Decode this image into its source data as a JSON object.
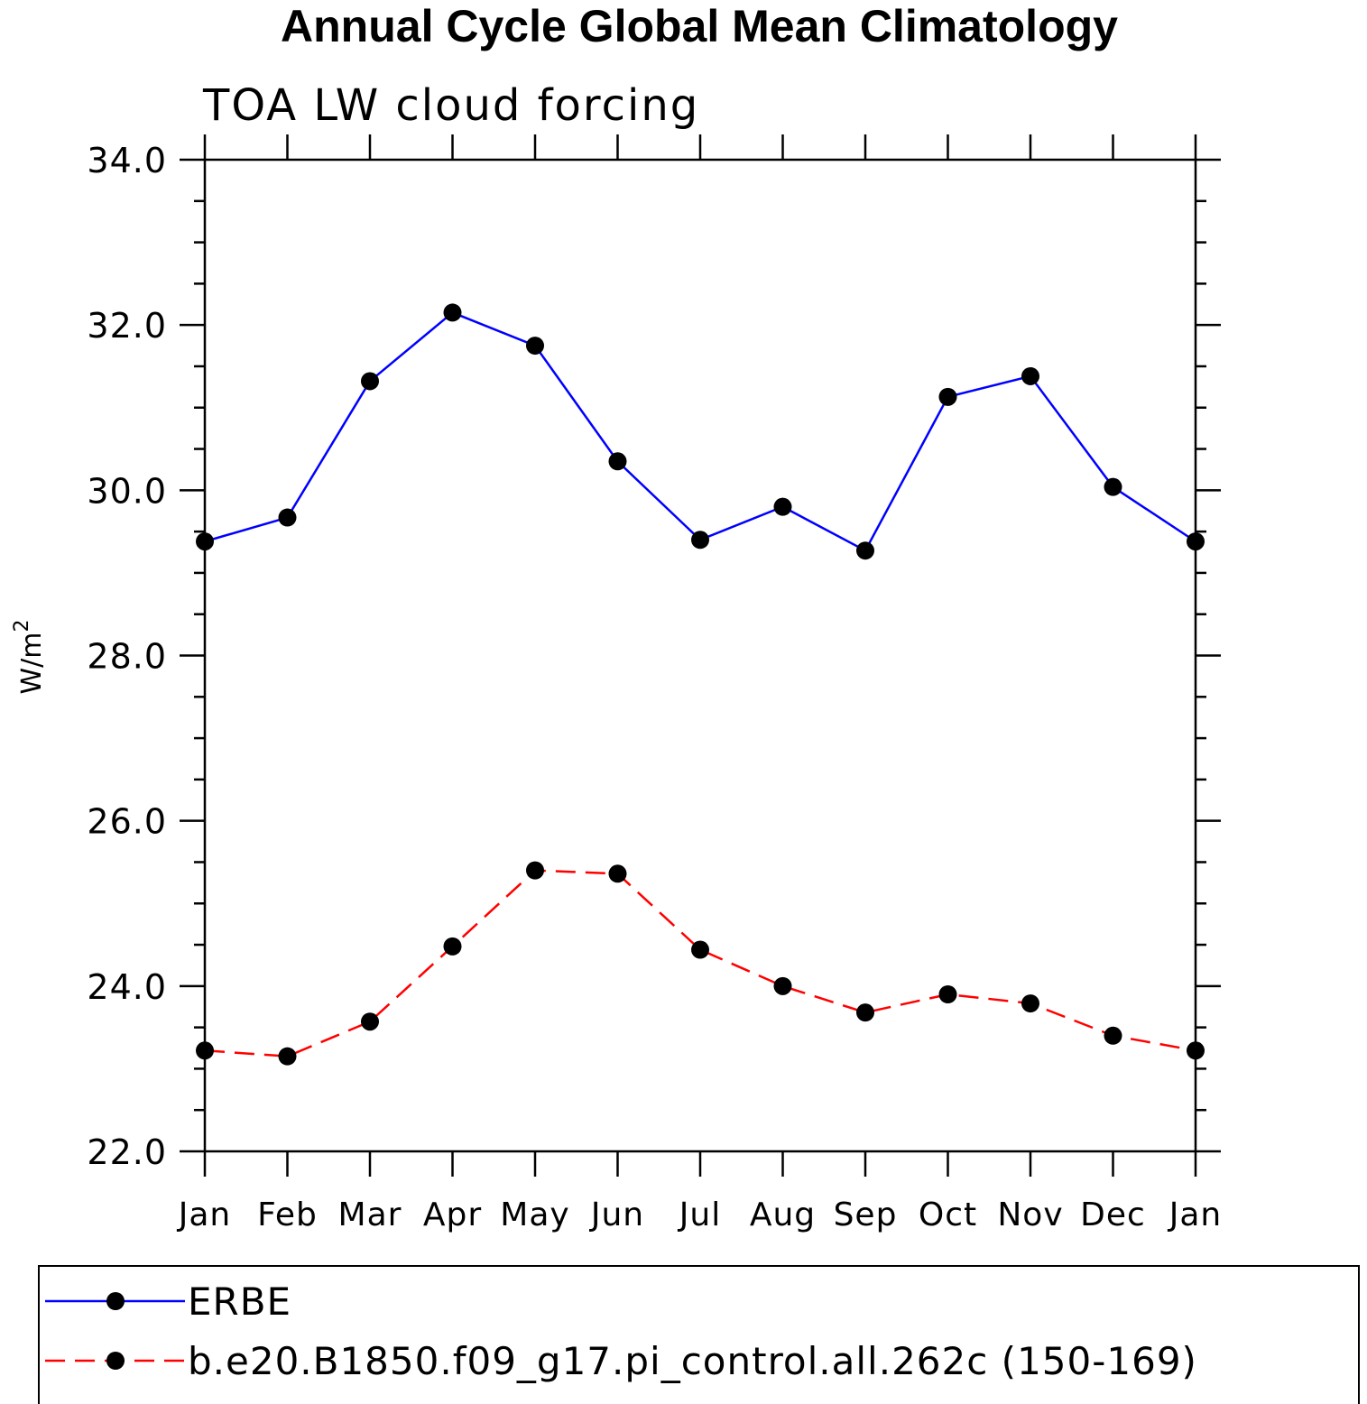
{
  "chart_data": {
    "type": "line",
    "title": "Annual Cycle Global Mean Climatology",
    "subtitle": "TOA LW cloud forcing",
    "ylabel": "W/m",
    "ylabel_superscript": "2",
    "ylim": [
      22.0,
      34.0
    ],
    "yticks": [
      "22.0",
      "24.0",
      "26.0",
      "28.0",
      "30.0",
      "32.0",
      "34.0"
    ],
    "categories": [
      "Jan",
      "Feb",
      "Mar",
      "Apr",
      "May",
      "Jun",
      "Jul",
      "Aug",
      "Sep",
      "Oct",
      "Nov",
      "Dec",
      "Jan"
    ],
    "series": [
      {
        "name": "ERBE",
        "color": "#0000ff",
        "dash": "solid",
        "marker": "filled-circle",
        "values": [
          29.38,
          29.67,
          31.32,
          32.15,
          31.75,
          30.35,
          29.4,
          29.8,
          29.27,
          31.13,
          31.38,
          30.04,
          29.38
        ]
      },
      {
        "name": "b.e20.B1850.f09_g17.pi_control.all.262c (150-169)",
        "color": "#ff0000",
        "dash": "dashed",
        "marker": "filled-circle",
        "values": [
          23.22,
          23.15,
          23.57,
          24.48,
          25.4,
          25.36,
          24.44,
          24.0,
          23.68,
          23.9,
          23.79,
          23.4,
          23.22
        ]
      }
    ],
    "legend_position": "bottom"
  }
}
